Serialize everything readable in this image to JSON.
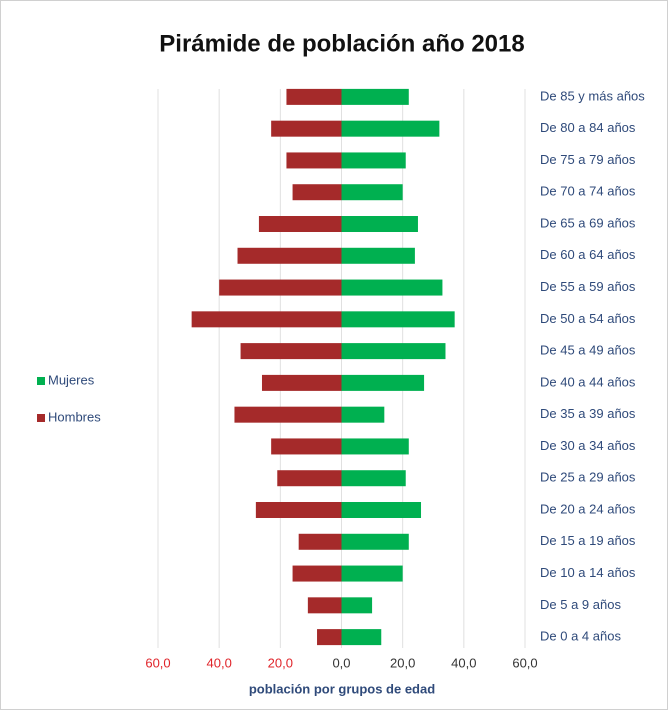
{
  "chart_data": {
    "type": "bar",
    "orientation": "horizontal",
    "title": "Pirámide de población año 2018",
    "xlabel": "población por grupos de edad",
    "categories": [
      "De 0 a 4 años",
      "De 5 a 9 años",
      "De 10 a 14 años",
      "De 15 a 19 años",
      "De 20 a 24 años",
      "De 25 a 29 años",
      "De 30 a 34 años",
      "De 35 a 39 años",
      "De 40 a 44 años",
      "De 45 a 49 años",
      "De 50 a 54 años",
      "De 55 a 59 años",
      "De 60 a 64 años",
      "De 65 a 69 años",
      "De 70 a 74 años",
      "De 75 a 79 años",
      "De 80 a 84 años",
      "De 85 y más años"
    ],
    "series": [
      {
        "name": "Mujeres",
        "color": "#00b050",
        "values": [
          13,
          10,
          20,
          22,
          26,
          21,
          22,
          14,
          27,
          34,
          37,
          33,
          24,
          25,
          20,
          21,
          32,
          22
        ]
      },
      {
        "name": "Hombres",
        "color": "#a52a2a",
        "values": [
          -8,
          -11,
          -16,
          -14,
          -28,
          -21,
          -23,
          -35,
          -26,
          -33,
          -49,
          -40,
          -34,
          -27,
          -16,
          -18,
          -23,
          -18
        ]
      }
    ],
    "xlim": [
      -60,
      60
    ],
    "xticks": [
      {
        "value": -60,
        "label": "60,0"
      },
      {
        "value": -40,
        "label": "40,0"
      },
      {
        "value": -20,
        "label": "20,0"
      },
      {
        "value": 0,
        "label": "0,0"
      },
      {
        "value": 20,
        "label": "20,0"
      },
      {
        "value": 40,
        "label": "40,0"
      },
      {
        "value": 60,
        "label": "60,0"
      }
    ],
    "grid": true,
    "legend": "left"
  }
}
